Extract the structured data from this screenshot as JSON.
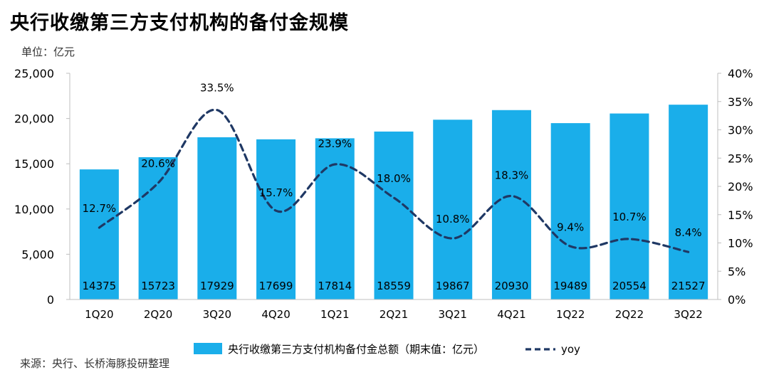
{
  "header": {
    "title": "央行收缴第三方支付机构的备付金规模",
    "unit_label": "单位：亿元",
    "source": "来源：央行、长桥海豚投研整理"
  },
  "chart_data": {
    "type": "bar",
    "categories": [
      "1Q20",
      "2Q20",
      "3Q20",
      "4Q20",
      "1Q21",
      "2Q21",
      "3Q21",
      "4Q21",
      "1Q22",
      "2Q22",
      "3Q22"
    ],
    "series": [
      {
        "name": "央行收缴第三方支付机构备付金总额（期末值：亿元）",
        "type": "bar",
        "axis": "left",
        "color": "#1AAEEA",
        "values": [
          14375,
          15723,
          17929,
          17699,
          17814,
          18559,
          19867,
          20930,
          19489,
          20554,
          21527
        ]
      },
      {
        "name": "yoy",
        "type": "line",
        "style": "dashed",
        "axis": "right",
        "color": "#1F3864",
        "values": [
          12.7,
          20.6,
          33.5,
          15.7,
          23.9,
          18.0,
          10.8,
          18.3,
          9.4,
          10.7,
          8.4
        ],
        "labels": [
          "12.7%",
          "20.6%",
          "33.5%",
          "15.7%",
          "23.9%",
          "18.0%",
          "10.8%",
          "18.3%",
          "9.4%",
          "10.7%",
          "8.4%"
        ]
      }
    ],
    "left_axis": {
      "range": [
        0,
        25000
      ],
      "ticks": [
        "0",
        "5,000",
        "10,000",
        "15,000",
        "20,000",
        "25,000"
      ]
    },
    "right_axis": {
      "range": [
        0,
        40
      ],
      "ticks": [
        "0%",
        "5%",
        "10%",
        "15%",
        "20%",
        "25%",
        "30%",
        "35%",
        "40%"
      ]
    },
    "grid": false,
    "legend_position": "bottom"
  }
}
